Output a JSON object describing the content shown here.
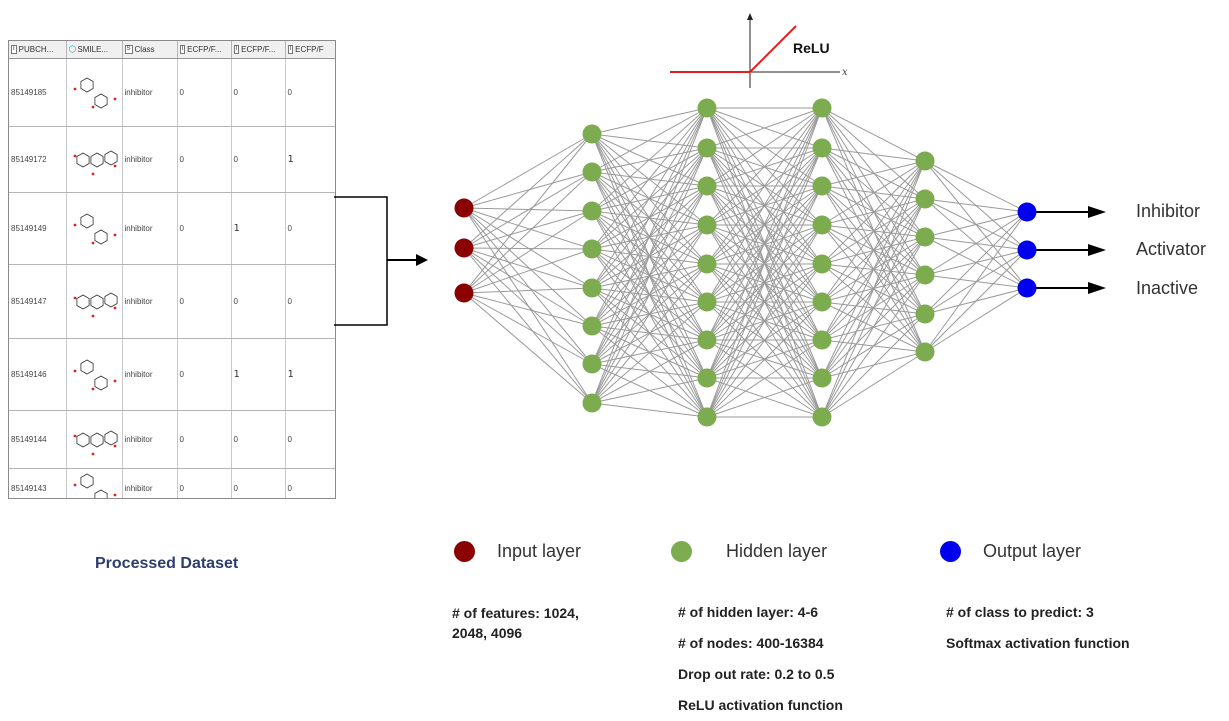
{
  "table": {
    "headers": [
      {
        "badge": "I",
        "label": "PUBCH..."
      },
      {
        "badge": "",
        "label": "SMILE..."
      },
      {
        "badge": "S",
        "label": "Class"
      },
      {
        "badge": "I",
        "label": "ECFP/F..."
      },
      {
        "badge": "I",
        "label": "ECFP/F..."
      },
      {
        "badge": "I",
        "label": "ECFP/F"
      }
    ],
    "rows": [
      {
        "id": "85149185",
        "cls": "inhibitor",
        "b1": "0",
        "b2": "0",
        "b3": "0"
      },
      {
        "id": "85149172",
        "cls": "inhibitor",
        "b1": "0",
        "b2": "0",
        "b3": "1"
      },
      {
        "id": "85149149",
        "cls": "inhibitor",
        "b1": "0",
        "b2": "1",
        "b3": "0"
      },
      {
        "id": "85149147",
        "cls": "inhibitor",
        "b1": "0",
        "b2": "0",
        "b3": "0"
      },
      {
        "id": "85149146",
        "cls": "inhibitor",
        "b1": "0",
        "b2": "1",
        "b3": "1"
      },
      {
        "id": "85149144",
        "cls": "inhibitor",
        "b1": "0",
        "b2": "0",
        "b3": "0"
      },
      {
        "id": "85149143",
        "cls": "inhibitor",
        "b1": "0",
        "b2": "0",
        "b3": "0"
      }
    ]
  },
  "dataset_caption": "Processed Dataset",
  "relu": {
    "title": "ReLU",
    "axis_label": "x"
  },
  "network": {
    "layer_sizes": [
      3,
      8,
      9,
      9,
      6,
      3
    ],
    "colors": {
      "input": "#8b0000",
      "hidden": "#7cac4f",
      "output": "#0000ee",
      "edge": "#9a9a9a"
    }
  },
  "outputs": [
    "Inhibitor",
    "Activator",
    "Inactive"
  ],
  "legend": {
    "input": "Input layer",
    "hidden": "Hidden layer",
    "output": "Output layer"
  },
  "info": {
    "input": [
      "# of features: 1024,",
      "2048, 4096"
    ],
    "hidden": [
      "# of hidden layer: 4-6",
      "# of nodes: 400-16384",
      "Drop out rate: 0.2 to 0.5",
      "ReLU activation function"
    ],
    "output": [
      "# of class to predict: 3",
      "Softmax activation function"
    ]
  }
}
